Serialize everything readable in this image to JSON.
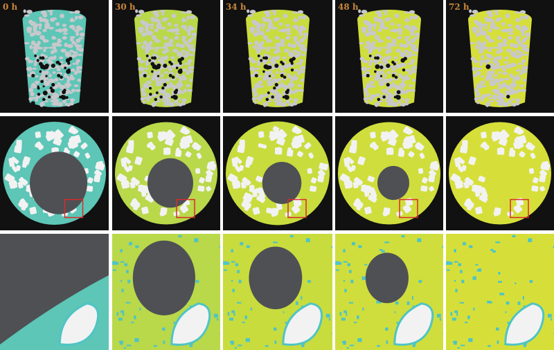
{
  "time_labels": [
    "0 h",
    "30 h",
    "34 h",
    "48 h",
    "72 h"
  ],
  "colors": {
    "background": "#111111",
    "pore": "#4e5054",
    "grain": "#f2f2f2",
    "grain_3d": "#c8c8cc",
    "highlight_box": "#d82a2a",
    "phase_by_time": [
      "#5dc6b6",
      "#b9d84a",
      "#c8dc3e",
      "#cfde3c",
      "#d6df3a"
    ],
    "rim": "#4fc4c4"
  }
}
